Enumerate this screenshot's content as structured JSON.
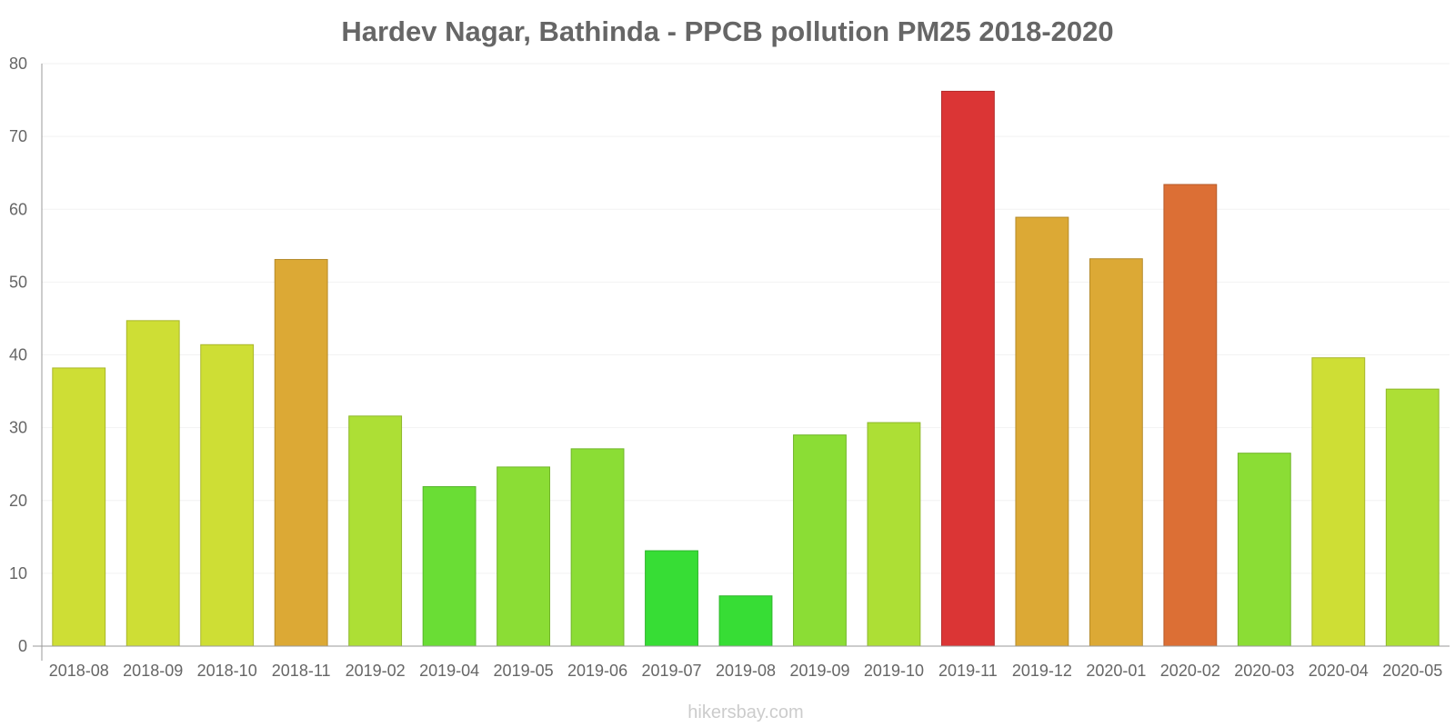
{
  "chart_data": {
    "type": "bar",
    "title": "Hardev Nagar, Bathinda - PPCB pollution PM25 2018-2020",
    "xlabel": "",
    "ylabel": "",
    "ylim": [
      0,
      80
    ],
    "yticks": [
      0,
      10,
      20,
      30,
      40,
      50,
      60,
      70,
      80
    ],
    "grid": true,
    "legend": "none",
    "categories": [
      "2018-08",
      "2018-09",
      "2018-10",
      "2018-11",
      "2019-02",
      "2019-04",
      "2019-05",
      "2019-06",
      "2019-07",
      "2019-08",
      "2019-09",
      "2019-10",
      "2019-11",
      "2019-12",
      "2020-01",
      "2020-02",
      "2020-03",
      "2020-04",
      "2020-05"
    ],
    "values": [
      38.2,
      44.7,
      41.4,
      53.1,
      31.6,
      21.9,
      24.6,
      27.1,
      13.1,
      6.9,
      29.0,
      30.7,
      76.2,
      58.9,
      53.2,
      63.4,
      26.5,
      39.6,
      35.3
    ],
    "colors": [
      "#cede35",
      "#cede35",
      "#cede35",
      "#dca935",
      "#addf35",
      "#6add35",
      "#8bdd35",
      "#8bdd35",
      "#37dd35",
      "#37dd35",
      "#8bdd35",
      "#addf35",
      "#db3535",
      "#dca935",
      "#dca935",
      "#dc6f35",
      "#8bdd35",
      "#cede35",
      "#addf35"
    ]
  },
  "watermark": "hikersbay.com"
}
